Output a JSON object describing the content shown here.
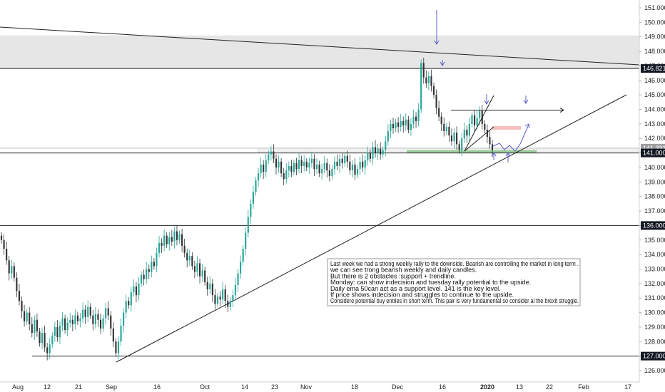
{
  "chart_data": {
    "type": "candlestick",
    "title": "",
    "xlabel": "",
    "ylabel": "",
    "ylim": [
      125.6,
      151.6
    ],
    "y_ticks": [
      126,
      127,
      128,
      129,
      130,
      131,
      132,
      133,
      134,
      135,
      136,
      137,
      138,
      139,
      140,
      141,
      142,
      143,
      144,
      145,
      146,
      147,
      148,
      149,
      150,
      151
    ],
    "y_tick_labels": [
      "126.000",
      "127.000",
      "128.000",
      "129.000",
      "130.000",
      "131.000",
      "132.000",
      "133.000",
      "134.000",
      "135.000",
      "136.000",
      "137.000",
      "138.000",
      "139.000",
      "140.000",
      "141.000",
      "142.000",
      "143.000",
      "144.000",
      "145.000",
      "146.000",
      "147.000",
      "148.000",
      "149.000",
      "150.000",
      "151.000"
    ],
    "x_tick_labels": [
      "Aug",
      "12",
      "21",
      "Sep",
      "16",
      "Oct",
      "14",
      "23",
      "Nov",
      "18",
      "Dec",
      "16",
      "2020",
      "13",
      "22",
      "Feb",
      "17"
    ],
    "x_tick_bold": [
      "2020"
    ],
    "highlighted_levels": [
      {
        "value": 146.821,
        "label": "146.821"
      },
      {
        "value": 141.331,
        "label": "141.331"
      },
      {
        "value": 141.0,
        "label": "141.000"
      },
      {
        "value": 136.0,
        "label": "136.000"
      },
      {
        "value": 127.0,
        "label": "127.000"
      }
    ],
    "resistance_zone": [
      146.8,
      149.1
    ],
    "support_zone": [
      141.0,
      141.2
    ],
    "sell_zone": [
      142.6,
      142.85
    ],
    "grid": false,
    "candle_colors": {
      "up": "#26a69a",
      "down": "#333333"
    },
    "close_series": [
      135.0,
      134.4,
      133.6,
      132.7,
      133.2,
      132.4,
      131.5,
      130.8,
      130.1,
      129.4,
      130.0,
      129.2,
      128.6,
      129.5,
      128.7,
      127.9,
      128.6,
      127.6,
      127.2,
      127.8,
      128.4,
      129.0,
      128.3,
      129.1,
      129.6,
      128.8,
      129.3,
      129.5,
      129.2,
      129.8,
      129.4,
      129.6,
      130.2,
      129.7,
      130.4,
      129.8,
      129.2,
      129.9,
      129.5,
      128.9,
      129.6,
      130.3,
      129.8,
      128.9,
      128.0,
      127.2,
      128.0,
      129.1,
      130.0,
      130.8,
      130.5,
      131.4,
      131.8,
      131.2,
      132.0,
      132.6,
      132.3,
      133.0,
      132.8,
      133.5,
      133.2,
      134.1,
      134.8,
      134.6,
      135.3,
      134.7,
      135.2,
      134.9,
      135.6,
      135.0,
      135.4,
      134.6,
      134.1,
      133.6,
      133.9,
      133.2,
      132.8,
      133.4,
      132.5,
      132.9,
      132.1,
      131.6,
      132.0,
      131.2,
      130.6,
      131.1,
      130.9,
      131.6,
      130.8,
      130.4,
      130.8,
      131.2,
      131.9,
      132.7,
      133.5,
      134.4,
      135.5,
      136.6,
      137.5,
      138.3,
      139.1,
      139.6,
      140.2,
      139.7,
      140.5,
      140.9,
      141.1,
      140.6,
      140.0,
      140.4,
      139.6,
      139.2,
      139.8,
      140.1,
      139.7,
      140.3,
      139.9,
      140.5,
      140.1,
      140.4,
      140.0,
      140.3,
      140.6,
      139.9,
      140.2,
      139.6,
      139.9,
      140.3,
      139.8,
      139.4,
      139.9,
      140.4,
      140.1,
      140.6,
      140.3,
      140.8,
      140.4,
      139.8,
      140.2,
      139.5,
      139.9,
      140.4,
      140.0,
      140.5,
      141.0,
      140.6,
      141.4,
      141.0,
      141.3,
      140.9,
      141.2,
      141.8,
      142.5,
      143.0,
      142.7,
      143.1,
      142.8,
      143.2,
      142.9,
      143.3,
      142.6,
      143.0,
      143.5,
      143.2,
      144.0,
      147.2,
      146.2,
      145.8,
      146.3,
      145.6,
      145.0,
      144.1,
      143.5,
      143.0,
      142.5,
      142.8,
      142.2,
      141.8,
      142.4,
      141.6,
      141.2,
      142.0,
      142.6,
      142.2,
      143.0,
      143.6,
      142.9,
      143.4,
      143.9,
      143.0,
      142.6,
      142.1,
      141.6,
      141.2
    ]
  },
  "annotation": {
    "lines": [
      "Last week we had a strong weekly rally to the downside. Bearish are controlling the market in long term .",
      "we can see trong bearish weekly and daily candles.",
      " But there is 2 obstacles :support + trendline.",
      "Monday: can show indecision and tuesday rally potential to the upside.",
      " Daily ema 50can act as a support level. 141 is the key level.",
      "If price shows indecision and struggles to continue to the upside.",
      " Considere potential buy entries in short term. This pair is very fundamental so consider al the brexit struggle."
    ]
  },
  "colors": {
    "axis_badge_dark": "#131722",
    "axis_badge_grey": "#9e9e9e",
    "zone_grey": "#e6e6e6",
    "zone_green": "#8fc88f",
    "zone_red": "#f4b8b8",
    "arrow_blue": "#5b5fc7",
    "line_black": "#222222"
  }
}
